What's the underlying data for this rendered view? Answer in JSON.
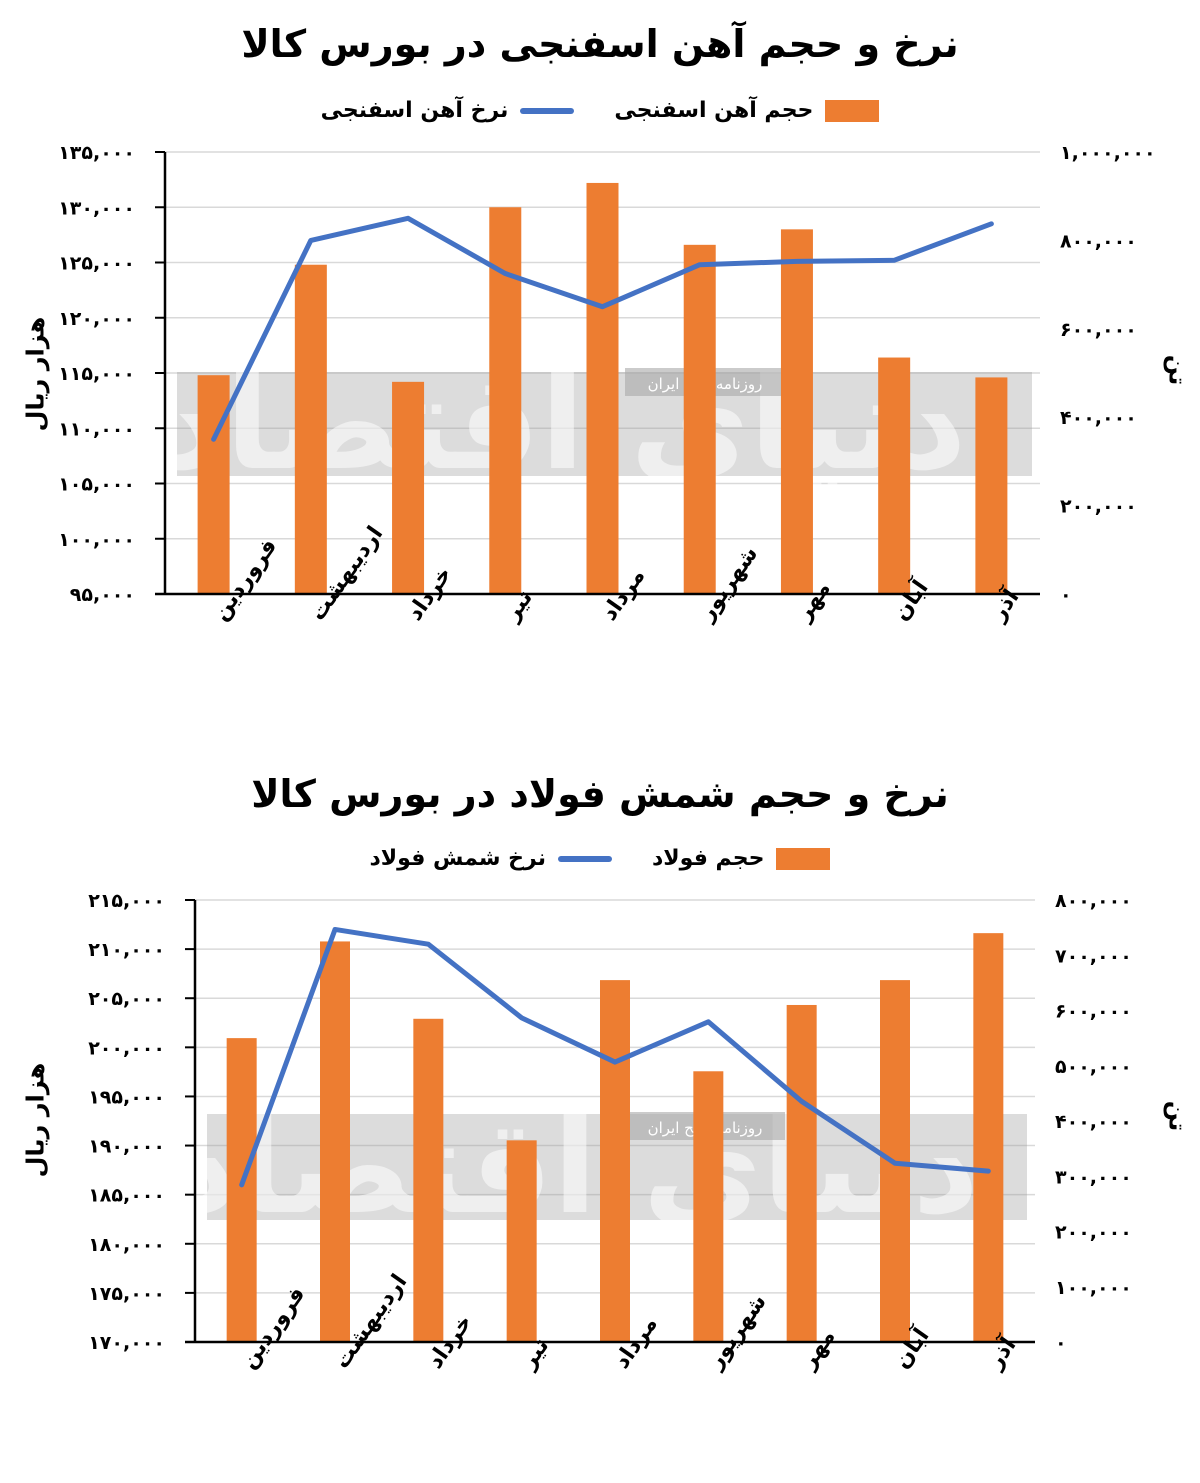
{
  "chart_data": [
    {
      "type": "bar+line",
      "title": "نرخ و حجم آهن اسفنجی در بورس کالا",
      "ylabel_left": "هزار ریال",
      "ylabel_right": "تن",
      "categories": [
        "فروردین",
        "اردیبهشت",
        "خرداد",
        "تیر",
        "مرداد",
        "شهریور",
        "مهر",
        "آبان",
        "آذر"
      ],
      "bar_series": {
        "name": "حجم آهن اسفنجی",
        "color": "#ED7D31",
        "values": [
          495000,
          745000,
          480000,
          875000,
          930000,
          790000,
          825000,
          535000,
          490000
        ]
      },
      "line_series": {
        "name": "نرخ آهن اسفنجی",
        "color": "#4472C4",
        "values": [
          109000,
          127000,
          129000,
          124000,
          121000,
          124800,
          125100,
          125200,
          128500
        ]
      },
      "left_axis": {
        "min": 95000,
        "max": 135000,
        "ticks": [
          "۹۵,۰۰۰",
          "۱۰۰,۰۰۰",
          "۱۰۵,۰۰۰",
          "۱۱۰,۰۰۰",
          "۱۱۵,۰۰۰",
          "۱۲۰,۰۰۰",
          "۱۲۵,۰۰۰",
          "۱۳۰,۰۰۰",
          "۱۳۵,۰۰۰"
        ]
      },
      "right_axis": {
        "min": 0,
        "max": 1000000,
        "ticks": [
          "۰",
          "۲۰۰,۰۰۰",
          "۴۰۰,۰۰۰",
          "۶۰۰,۰۰۰",
          "۸۰۰,۰۰۰",
          "۱,۰۰۰,۰۰۰"
        ]
      },
      "grid": true,
      "legend": "top-center"
    },
    {
      "type": "bar+line",
      "title": "نرخ و حجم شمش فولاد در بورس کالا",
      "ylabel_left": "هزار ریال",
      "ylabel_right": "تن",
      "categories": [
        "فروردین",
        "اردیبهشت",
        "خرداد",
        "تیر",
        "مرداد",
        "شهریور",
        "مهر",
        "آبان",
        "آذر"
      ],
      "bar_series": {
        "name": "حجم فولاد",
        "color": "#ED7D31",
        "values": [
          550000,
          725000,
          585000,
          365000,
          655000,
          490000,
          610000,
          655000,
          740000
        ]
      },
      "line_series": {
        "name": "نرخ شمش فولاد",
        "color": "#4472C4",
        "values": [
          186000,
          212000,
          210500,
          203000,
          198500,
          202600,
          194500,
          188200,
          187400
        ]
      },
      "left_axis": {
        "min": 170000,
        "max": 215000,
        "ticks": [
          "۱۷۰,۰۰۰",
          "۱۷۵,۰۰۰",
          "۱۸۰,۰۰۰",
          "۱۸۵,۰۰۰",
          "۱۹۰,۰۰۰",
          "۱۹۵,۰۰۰",
          "۲۰۰,۰۰۰",
          "۲۰۵,۰۰۰",
          "۲۱۰,۰۰۰",
          "۲۱۵,۰۰۰"
        ]
      },
      "right_axis": {
        "min": 0,
        "max": 800000,
        "ticks": [
          "۰",
          "۱۰۰,۰۰۰",
          "۲۰۰,۰۰۰",
          "۳۰۰,۰۰۰",
          "۴۰۰,۰۰۰",
          "۵۰۰,۰۰۰",
          "۶۰۰,۰۰۰",
          "۷۰۰,۰۰۰",
          "۸۰۰,۰۰۰"
        ]
      },
      "grid": true,
      "legend": "top-center"
    }
  ],
  "watermark": {
    "brand": "دنیای اقتصاد",
    "tagline": "روزنامه صبح ایران"
  }
}
